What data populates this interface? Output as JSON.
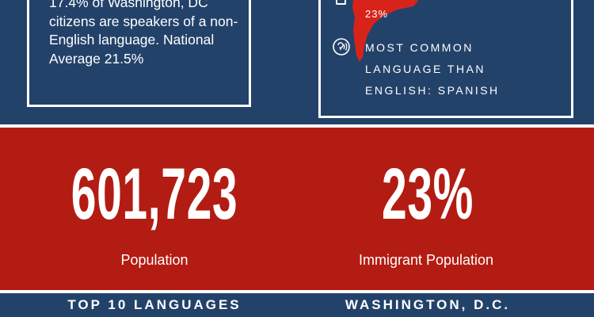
{
  "left_panel": {
    "text": "17.4% of Washington, DC citizens are speakers of a non-English language. National Average 21.5%"
  },
  "right_panel": {
    "map_percent": "23%",
    "language_text": "Most common language than English: Spanish"
  },
  "stats": {
    "population_value": "601,723",
    "population_label": "Population",
    "immigrant_value": "23%",
    "immigrant_label": "Immigrant Population"
  },
  "bottom": {
    "left_title": "TOP 10 LANGUAGES",
    "right_title": "WASHINGTON, D.C."
  },
  "colors": {
    "navy": "#23426a",
    "red": "#b31c12",
    "white": "#ffffff"
  },
  "icons": {
    "map": "map-shape-icon",
    "speech": "speech-bubble-icon",
    "box": "box-icon"
  }
}
